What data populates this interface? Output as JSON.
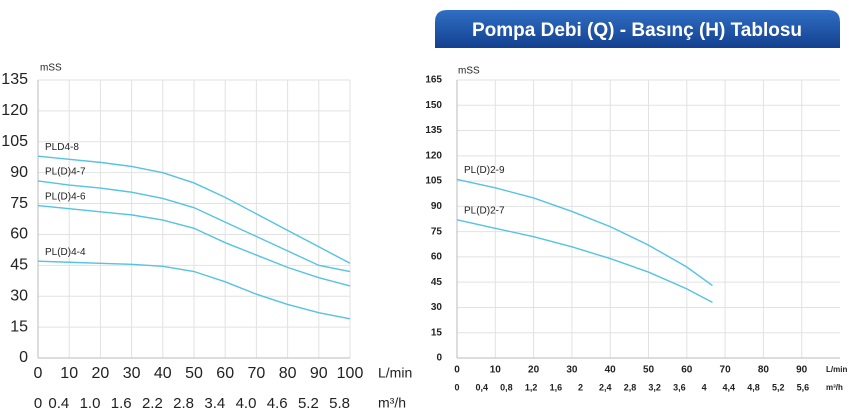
{
  "header": {
    "banner": "Pompa Debi (Q) - Basınç (H) Tablosu"
  },
  "chart_data": [
    {
      "type": "line",
      "y_label": "mSS",
      "x_label": "L/min",
      "x2_label": "m³/h",
      "x": [
        0,
        10,
        20,
        30,
        40,
        50,
        60,
        70,
        80,
        90,
        100
      ],
      "series": [
        {
          "name": "PLD4-8",
          "color": "#55c3e3",
          "values": [
            98,
            96.5,
            95,
            93,
            90,
            85,
            78,
            70,
            62,
            54,
            46
          ]
        },
        {
          "name": "PL(D)4-7",
          "color": "#55c3e3",
          "values": [
            86,
            84,
            82.5,
            80.5,
            77.5,
            73,
            66,
            59,
            52,
            45,
            42
          ]
        },
        {
          "name": "PL(D)4-6",
          "color": "#55c3e3",
          "values": [
            74,
            72.5,
            71,
            69.5,
            67,
            63,
            56,
            50,
            44,
            39,
            35
          ]
        },
        {
          "name": "PL(D)4-4",
          "color": "#55c3e3",
          "values": [
            47,
            46.5,
            46,
            45.5,
            44.5,
            42,
            37,
            31,
            26,
            22,
            19
          ]
        }
      ],
      "xlim": [
        0,
        100
      ],
      "xticks": [
        0,
        10,
        20,
        30,
        40,
        50,
        60,
        70,
        80,
        90,
        100
      ],
      "x2lim": [
        0,
        6
      ],
      "x2ticks": [
        0,
        0.4,
        {
          "value": 1,
          "label": "1.0"
        },
        1.6,
        2.2,
        2.8,
        3.4,
        {
          "value": 4,
          "label": "4.0"
        },
        4.6,
        5.2,
        5.8
      ],
      "ylim": [
        0,
        135
      ],
      "yticks": [
        0,
        15,
        30,
        45,
        60,
        75,
        90,
        105,
        120,
        135
      ],
      "grid": true
    },
    {
      "type": "line",
      "y_label": "mSS",
      "x_label": "L/min",
      "x2_label": "m³/h",
      "x": [
        0,
        10,
        20,
        30,
        40,
        50,
        60,
        66.7
      ],
      "series": [
        {
          "name": "PL(D)2-9",
          "color": "#55c3e3",
          "values": [
            106,
            101,
            95,
            87,
            78,
            67,
            54,
            43
          ]
        },
        {
          "name": "PL(D)2-7",
          "color": "#55c3e3",
          "values": [
            82,
            77,
            72,
            66,
            59,
            51,
            41,
            33
          ]
        }
      ],
      "xlim": [
        0,
        100
      ],
      "xticks": [
        0,
        10,
        20,
        30,
        40,
        50,
        60,
        70,
        80,
        90
      ],
      "x2lim": [
        0,
        6.2
      ],
      "x2ticks": [
        0,
        {
          "value": 0.4,
          "label": "0,4"
        },
        {
          "value": 0.8,
          "label": "0,8"
        },
        {
          "value": 1.2,
          "label": "1,2"
        },
        {
          "value": 1.6,
          "label": "1,6"
        },
        2,
        {
          "value": 2.4,
          "label": "2,4"
        },
        {
          "value": 2.8,
          "label": "2,8"
        },
        {
          "value": 3.2,
          "label": "3,2"
        },
        {
          "value": 3.6,
          "label": "3,6"
        },
        4,
        {
          "value": 4.4,
          "label": "4,4"
        },
        {
          "value": 4.8,
          "label": "4,8"
        },
        {
          "value": 5.2,
          "label": "5,2"
        },
        {
          "value": 5.6,
          "label": "5,6"
        }
      ],
      "ylim": [
        0,
        165
      ],
      "yticks": [
        0,
        15,
        30,
        45,
        60,
        75,
        90,
        105,
        120,
        135,
        150,
        165
      ],
      "grid": true
    }
  ]
}
